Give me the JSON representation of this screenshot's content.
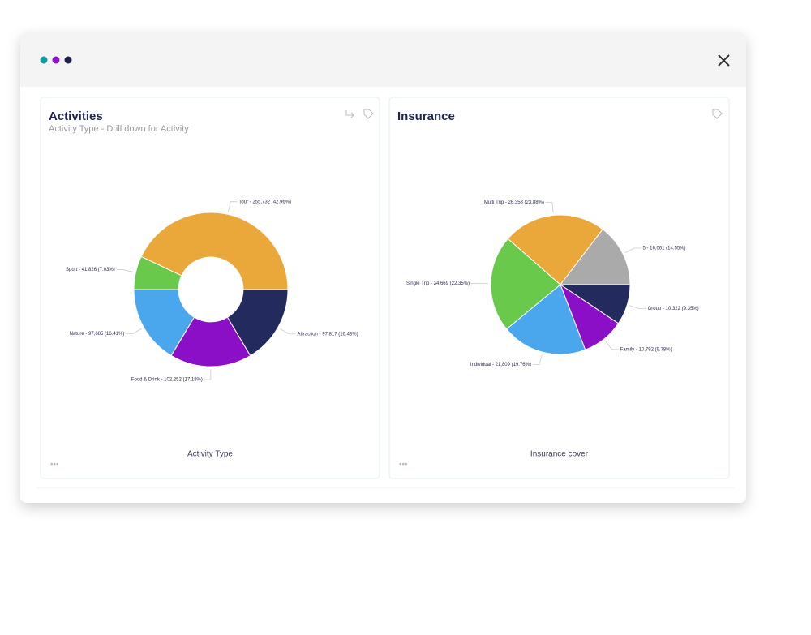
{
  "chart_data": [
    {
      "type": "donut",
      "title": "Activities",
      "subtitle": "Activity Type - Drill down for Activity",
      "xlabel": "Activity Type",
      "values": [
        97817,
        102252,
        97685,
        41826,
        255732
      ],
      "value_labels": [
        "Attraction - 97,817 (16.43%)",
        "Food & Drink - 102,252 (17.18%)",
        "Nature - 97,685 (16.41%)",
        "Sport - 41,826 (7.03%)",
        "Tour - 255,732 (42.96%)"
      ],
      "colors": [
        "#232b5e",
        "#8b0fc7",
        "#4aa7ee",
        "#68c94b",
        "#eba83a"
      ]
    },
    {
      "type": "pie",
      "title": "Insurance",
      "xlabel": "Insurance cover",
      "values": [
        10322,
        10792,
        21809,
        24669,
        26358,
        16061
      ],
      "value_labels": [
        "Group - 10,322 (9.35%)",
        "Family - 10,792 (9.78%)",
        "Individual - 21,809 (19.76%)",
        "Single Trip - 24,669 (22.35%)",
        "Multi Trip - 26,358 (23.88%)",
        "5 - 16,061 (14.55%)"
      ],
      "colors": [
        "#232b5e",
        "#8b0fc7",
        "#4aa7ee",
        "#68c94b",
        "#eba83a",
        "#aaaaaa"
      ]
    }
  ]
}
